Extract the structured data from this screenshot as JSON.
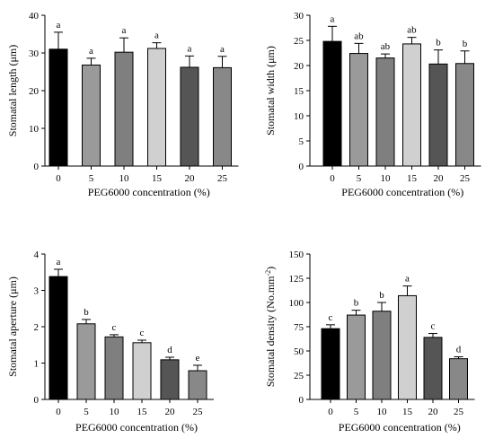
{
  "chart_data": [
    {
      "type": "bar",
      "categories": [
        "0",
        "5",
        "10",
        "15",
        "20",
        "25"
      ],
      "values": [
        31.0,
        26.8,
        30.2,
        31.2,
        26.2,
        26.1
      ],
      "errors": [
        4.5,
        1.8,
        3.8,
        1.5,
        3.0,
        3.0
      ],
      "significance": [
        "a",
        "a",
        "a",
        "a",
        "a",
        "a"
      ],
      "ylabel": "Stomatal length (μm)",
      "xlabel": "PEG6000 concentration (%)",
      "ylim": [
        0,
        40
      ],
      "yticks": [
        0,
        10,
        20,
        30,
        40
      ],
      "colors": [
        "#000000",
        "#9a9a9a",
        "#7f7f7f",
        "#d0d0d0",
        "#555555",
        "#888888"
      ]
    },
    {
      "type": "bar",
      "categories": [
        "0",
        "5",
        "10",
        "15",
        "20",
        "25"
      ],
      "values": [
        24.8,
        22.4,
        21.5,
        24.3,
        20.3,
        20.4
      ],
      "errors": [
        3.0,
        2.0,
        0.8,
        1.3,
        2.8,
        2.5
      ],
      "significance": [
        "a",
        "ab",
        "ab",
        "ab",
        "b",
        "b"
      ],
      "ylabel": "Stomatal width (μm)",
      "xlabel": "PEG6000 concentration (%)",
      "ylim": [
        0,
        30
      ],
      "yticks": [
        0,
        5,
        10,
        15,
        20,
        25,
        30
      ],
      "colors": [
        "#000000",
        "#9a9a9a",
        "#7f7f7f",
        "#d0d0d0",
        "#555555",
        "#888888"
      ]
    },
    {
      "type": "bar",
      "categories": [
        "0",
        "5",
        "10",
        "15",
        "20",
        "25"
      ],
      "values": [
        3.38,
        2.08,
        1.72,
        1.56,
        1.09,
        0.79
      ],
      "errors": [
        0.2,
        0.12,
        0.06,
        0.07,
        0.07,
        0.15
      ],
      "significance": [
        "a",
        "b",
        "c",
        "c",
        "d",
        "e"
      ],
      "ylabel": "Stomatal aperture (μm)",
      "xlabel": "PEG6000 concentration (%)",
      "ylim": [
        0,
        4
      ],
      "yticks": [
        0,
        1,
        2,
        3,
        4
      ],
      "colors": [
        "#000000",
        "#9a9a9a",
        "#7f7f7f",
        "#d0d0d0",
        "#555555",
        "#888888"
      ]
    },
    {
      "type": "bar",
      "categories": [
        "0",
        "5",
        "10",
        "15",
        "20",
        "25"
      ],
      "values": [
        73,
        87,
        91,
        107,
        64,
        42
      ],
      "errors": [
        4,
        5,
        9,
        10,
        4,
        2
      ],
      "significance": [
        "c",
        "b",
        "b",
        "a",
        "c",
        "d"
      ],
      "ylabel": "Stomatal density (No.mm",
      "ylabel_sup": "-2",
      "ylabel_suffix": ")",
      "xlabel": "PEG6000 concentration (%)",
      "ylim": [
        0,
        150
      ],
      "yticks": [
        0,
        25,
        50,
        75,
        100,
        125,
        150
      ],
      "colors": [
        "#000000",
        "#9a9a9a",
        "#7f7f7f",
        "#d0d0d0",
        "#555555",
        "#888888"
      ]
    }
  ]
}
